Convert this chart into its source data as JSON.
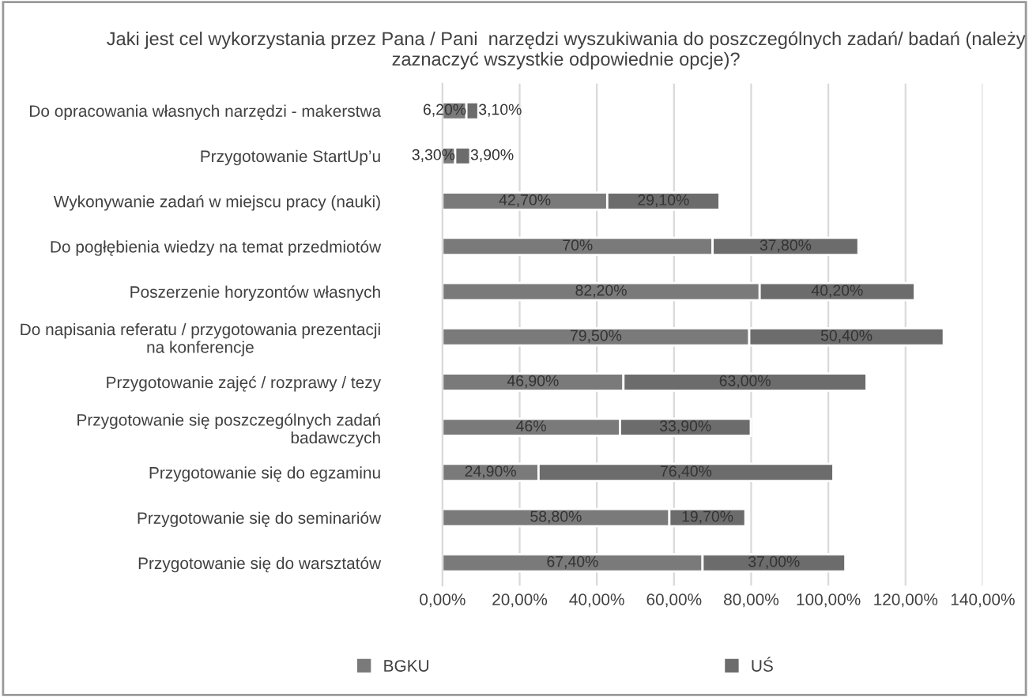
{
  "chart_data": {
    "type": "bar",
    "orientation": "horizontal",
    "stacked": true,
    "title": "Jaki jest cel wykorzystania przez Pana / Pani  narzędzi wyszukiwania do poszczególnych zadań/ badań (należy zaznaczyć wszystkie odpowiednie opcje)?",
    "categories": [
      "Do opracowania własnych narzędzi - makerstwa",
      "Przygotowanie StartUp’u",
      "Wykonywanie zadań w miejscu pracy (nauki)",
      "Do pogłębienia wiedzy na temat przedmiotów",
      "Poszerzenie horyzontów własnych",
      "Do napisania referatu / przygotowania prezentacji na konferencje",
      "Przygotowanie zajęć / rozprawy / tezy",
      "Przygotowanie się poszczególnych zadań badawczych",
      "Przygotowanie się do egzaminu",
      "Przygotowanie się do seminariów",
      "Przygotowanie się do warsztatów"
    ],
    "series": [
      {
        "name": "BGKU",
        "color": "#7a7a7a",
        "values": [
          6.2,
          3.3,
          42.7,
          70,
          82.2,
          79.5,
          46.9,
          46,
          24.9,
          58.8,
          67.4
        ],
        "value_labels": [
          "6,20%",
          "3,30%",
          "42,70%",
          "70%",
          "82,20%",
          "79,50%",
          "46,90%",
          "46%",
          "24,90%",
          "58,80%",
          "67,40%"
        ]
      },
      {
        "name": "UŚ",
        "color": "#6c6c6c",
        "values": [
          3.1,
          3.9,
          29.1,
          37.8,
          40.2,
          50.4,
          63.0,
          33.9,
          76.4,
          19.7,
          37.0
        ],
        "value_labels": [
          "3,10%",
          "3,90%",
          "29,10%",
          "37,80%",
          "40,20%",
          "50,40%",
          "63,00%",
          "33,90%",
          "76,40%",
          "19,70%",
          "37,00%"
        ]
      }
    ],
    "xlim": [
      0,
      140
    ],
    "xticks": [
      {
        "value": 0,
        "label": "0,00%"
      },
      {
        "value": 20,
        "label": "20,00%"
      },
      {
        "value": 40,
        "label": "40,00%"
      },
      {
        "value": 60,
        "label": "60,00%"
      },
      {
        "value": 80,
        "label": "80,00%"
      },
      {
        "value": 100,
        "label": "100,00%"
      },
      {
        "value": 120,
        "label": "120,00%"
      },
      {
        "value": 140,
        "label": "140,00%"
      }
    ],
    "grid": "x",
    "legend": "bottom"
  }
}
